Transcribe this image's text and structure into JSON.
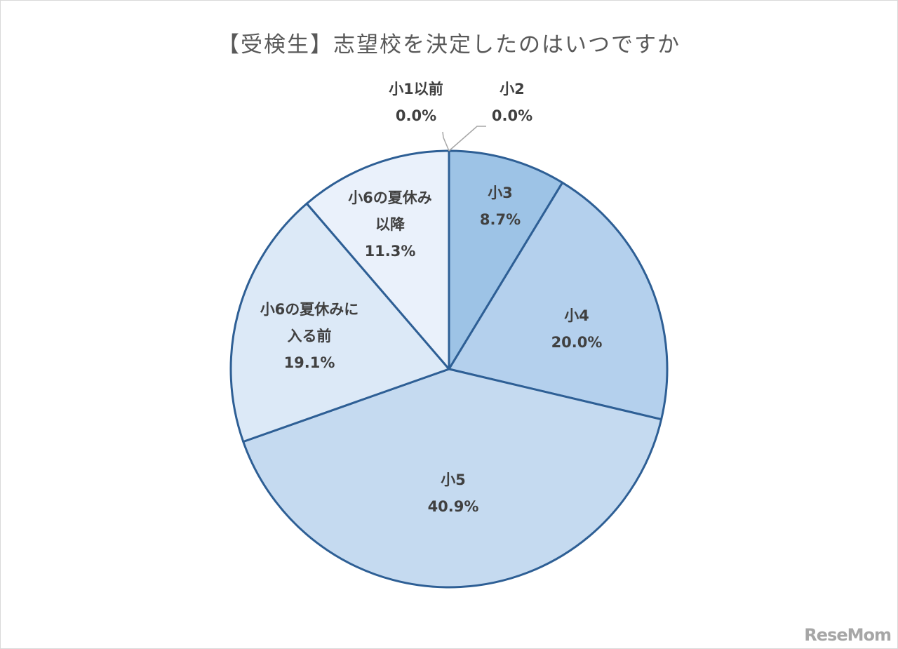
{
  "chart_data": {
    "type": "pie",
    "title": "【受検生】志望校を決定したのはいつですか",
    "slices": [
      {
        "label": [
          "小1以前"
        ],
        "value": 0.0,
        "display": "0.0%",
        "color": "#9dc3e6"
      },
      {
        "label": [
          "小2"
        ],
        "value": 0.0,
        "display": "0.0%",
        "color": "#9dc3e6"
      },
      {
        "label": [
          "小3"
        ],
        "value": 8.7,
        "display": "8.7%",
        "color": "#9dc3e6"
      },
      {
        "label": [
          "小4"
        ],
        "value": 20.0,
        "display": "20.0%",
        "color": "#b4d0ed"
      },
      {
        "label": [
          "小5"
        ],
        "value": 40.9,
        "display": "40.9%",
        "color": "#c5daf0"
      },
      {
        "label": [
          "小6の夏休みに",
          "入る前"
        ],
        "value": 19.1,
        "display": "19.1%",
        "color": "#dce9f7"
      },
      {
        "label": [
          "小6の夏休み",
          "以降"
        ],
        "value": 11.3,
        "display": "11.3%",
        "color": "#eaf1fb"
      }
    ],
    "start_angle": "12 o'clock",
    "direction": "clockwise",
    "stroke_color": "#2e5f95",
    "leader_color": "#a6a6a6"
  },
  "watermark": "ReseMom"
}
